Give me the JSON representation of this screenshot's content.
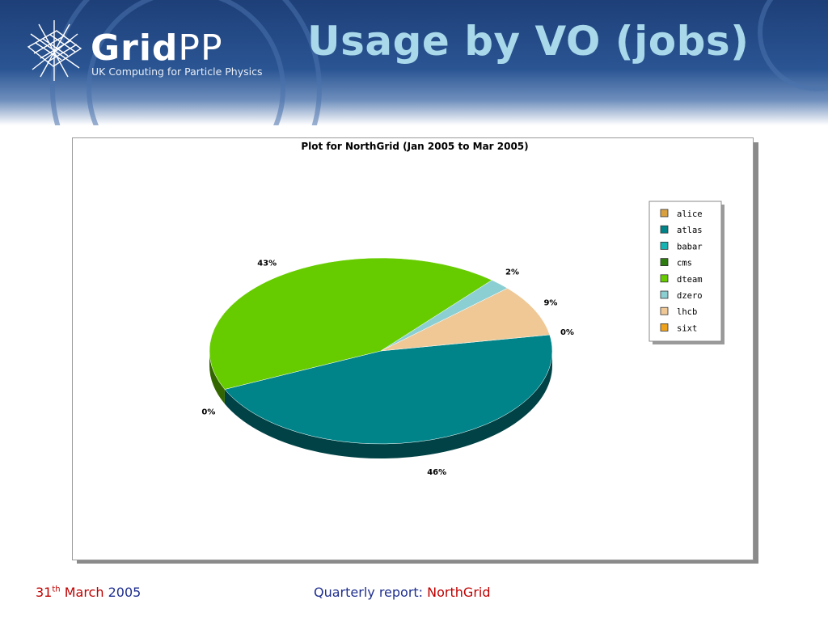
{
  "header": {
    "logo_main": "Grid",
    "logo_accent": "PP",
    "logo_subtitle": "UK Computing for Particle Physics",
    "title": "Usage by VO (jobs)"
  },
  "footer": {
    "date_day": "31",
    "date_suffix": "th",
    "date_month": "March",
    "date_year": "2005",
    "report_label": "Quarterly report:",
    "report_site": "NorthGrid"
  },
  "colors": {
    "banner": "#1e3f78",
    "title": "#a9d8ea",
    "footer_red": "#c00000",
    "footer_blue": "#1f2f8f"
  },
  "chart_data": {
    "type": "pie",
    "title": "Plot for NorthGrid (Jan 2005 to Mar 2005)",
    "legend_position": "top-right",
    "series": [
      {
        "name": "alice",
        "value": 0,
        "label": "0%",
        "color": "#d9a040"
      },
      {
        "name": "atlas",
        "value": 46,
        "label": "46%",
        "color": "#008489"
      },
      {
        "name": "babar",
        "value": 0,
        "label": "0%",
        "color": "#17b3b3"
      },
      {
        "name": "cms",
        "value": 0,
        "label": "",
        "color": "#2f7d10"
      },
      {
        "name": "dteam",
        "value": 43,
        "label": "43%",
        "color": "#66cc00"
      },
      {
        "name": "dzero",
        "value": 2,
        "label": "2%",
        "color": "#8ccfd3"
      },
      {
        "name": "lhcb",
        "value": 9,
        "label": "9%",
        "color": "#efc896"
      },
      {
        "name": "sixt",
        "value": 0,
        "label": "",
        "color": "#efa31c"
      }
    ]
  }
}
